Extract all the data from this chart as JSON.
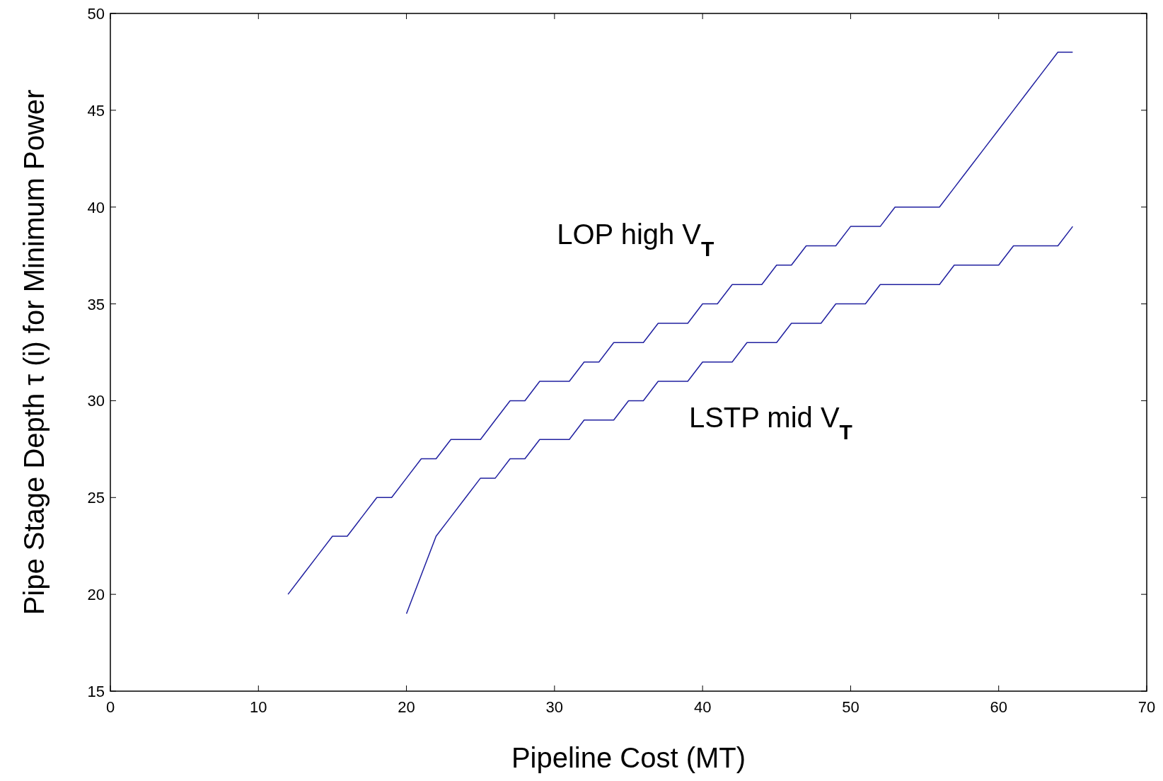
{
  "chart_data": {
    "type": "line",
    "xlabel": "Pipeline Cost (MT)",
    "ylabel": "Pipe Stage Depth τ (i) for Minimum Power",
    "xlim": [
      0,
      70
    ],
    "ylim": [
      15,
      50
    ],
    "xticks": [
      0,
      10,
      20,
      30,
      40,
      50,
      60,
      70
    ],
    "yticks": [
      15,
      20,
      25,
      30,
      35,
      40,
      45,
      50
    ],
    "grid": false,
    "line_style": "solid",
    "series": [
      {
        "name": "LOP high V$_{T}$",
        "color": "#2020a0",
        "x": [
          12,
          13,
          14,
          15,
          16,
          17,
          18,
          19,
          20,
          21,
          22,
          23,
          24,
          25,
          26,
          27,
          28,
          29,
          30,
          31,
          32,
          33,
          34,
          35,
          36,
          37,
          38,
          39,
          40,
          41,
          42,
          43,
          44,
          45,
          46,
          47,
          48,
          49,
          50,
          51,
          52,
          53,
          54,
          55,
          56,
          57,
          58,
          59,
          60,
          61,
          62,
          63,
          64,
          65
        ],
        "values": [
          20,
          21,
          22,
          23,
          23,
          24,
          25,
          25,
          26,
          27,
          27,
          28,
          28,
          28,
          29,
          30,
          30,
          31,
          31,
          31,
          32,
          32,
          33,
          33,
          33,
          34,
          34,
          34,
          35,
          35,
          36,
          36,
          36,
          37,
          37,
          38,
          38,
          38,
          39,
          39,
          39,
          40,
          40,
          40,
          40,
          41,
          42,
          43,
          44,
          45,
          46,
          47,
          48,
          48
        ]
      },
      {
        "name": "LSTP mid V$_{T}$",
        "color": "#2020a0",
        "x": [
          20,
          21,
          22,
          23,
          24,
          25,
          26,
          27,
          28,
          29,
          30,
          31,
          32,
          33,
          34,
          35,
          36,
          37,
          38,
          39,
          40,
          41,
          42,
          43,
          44,
          45,
          46,
          47,
          48,
          49,
          50,
          51,
          52,
          53,
          54,
          55,
          56,
          57,
          58,
          59,
          60,
          61,
          62,
          63,
          64,
          65
        ],
        "values": [
          19,
          21,
          23,
          24,
          25,
          26,
          26,
          27,
          27,
          28,
          28,
          28,
          29,
          29,
          29,
          30,
          30,
          31,
          31,
          31,
          32,
          32,
          32,
          33,
          33,
          33,
          34,
          34,
          34,
          35,
          35,
          35,
          36,
          36,
          36,
          36,
          36,
          37,
          37,
          37,
          37,
          38,
          38,
          38,
          38,
          39
        ]
      }
    ]
  }
}
